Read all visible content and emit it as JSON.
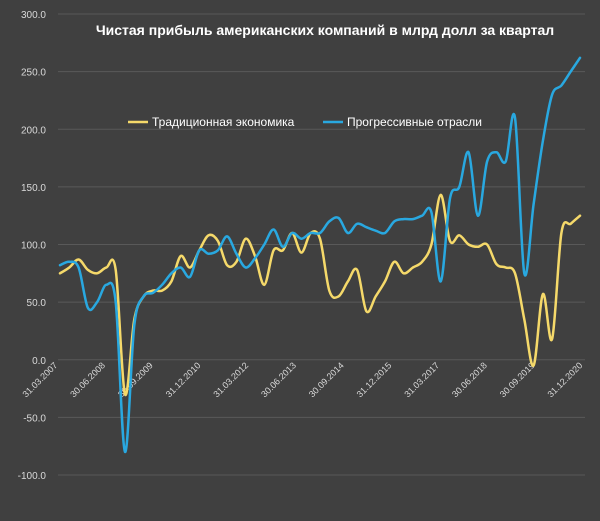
{
  "chart_data": {
    "type": "line",
    "title": "Чистая прибыль американских компаний в млрд долл за квартал",
    "xlabel": "",
    "ylabel": "",
    "ylim": [
      -100,
      300
    ],
    "y_ticks": [
      "300.0",
      "250.0",
      "200.0",
      "150.0",
      "100.0",
      "50.0",
      "0.0",
      "-50.0",
      "-100.0"
    ],
    "x_ticks": [
      "31.03.2007",
      "30.06.2008",
      "30.09.2009",
      "31.12.2010",
      "31.03.2012",
      "30.06.2013",
      "30.09.2014",
      "31.12.2015",
      "31.03.2017",
      "30.06.2018",
      "30.09.2019",
      "31.12.2020"
    ],
    "grid": true,
    "legend_position": "upper-center",
    "quarters_count": 57,
    "series": [
      {
        "name": "Традиционная экономика",
        "color": "#f5d96a",
        "values": [
          75,
          80,
          87,
          78,
          75,
          80,
          78,
          -30,
          35,
          55,
          60,
          60,
          68,
          90,
          80,
          95,
          108,
          103,
          82,
          85,
          105,
          90,
          65,
          95,
          95,
          110,
          93,
          110,
          105,
          60,
          55,
          68,
          78,
          42,
          55,
          68,
          85,
          75,
          80,
          85,
          100,
          143,
          103,
          108,
          100,
          98,
          100,
          83,
          80,
          75,
          35,
          -5,
          57,
          18,
          110,
          118,
          125
        ]
      },
      {
        "name": "Прогрессивные отрасли",
        "color": "#29a8e0",
        "values": [
          82,
          85,
          80,
          45,
          50,
          65,
          50,
          -80,
          30,
          55,
          58,
          65,
          75,
          80,
          72,
          95,
          92,
          95,
          107,
          92,
          80,
          88,
          100,
          113,
          98,
          110,
          105,
          110,
          110,
          120,
          123,
          110,
          118,
          115,
          112,
          110,
          120,
          122,
          122,
          125,
          128,
          68,
          140,
          150,
          180,
          125,
          172,
          180,
          172,
          210,
          75,
          135,
          190,
          230,
          238,
          250,
          262
        ]
      }
    ]
  }
}
